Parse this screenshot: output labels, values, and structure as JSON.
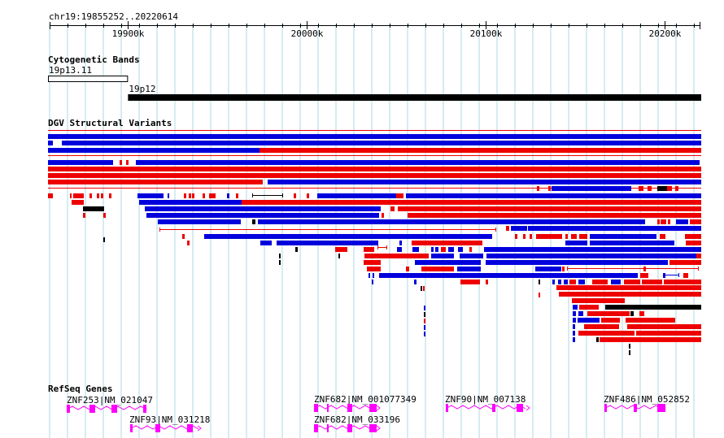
{
  "ruler": {
    "title": "chr19:19855252..20220614",
    "ticks": [
      {
        "label": "19900k",
        "pos": 19900000
      },
      {
        "label": "20000k",
        "pos": 20000000
      },
      {
        "label": "20100k",
        "pos": 20100000
      },
      {
        "label": "20200k",
        "pos": 20200000
      }
    ]
  },
  "tracks": {
    "cytoband": {
      "title": "Cytogenetic Bands",
      "bands": [
        {
          "label": "19p13.11",
          "start": 19855252,
          "end": 19900000,
          "stain": "gneg"
        },
        {
          "label": "19p12",
          "start": 19900000,
          "end": 20220614,
          "stain": "gvar"
        }
      ]
    },
    "dgv": {
      "title": "DGV Structural Variants",
      "colors": {
        "gain": "#0000dd",
        "loss": "#ee0000",
        "both": "#000000"
      }
    },
    "refseq": {
      "title": "RefSeq Genes",
      "gene_color": "#ff00ff",
      "genes": [
        {
          "label": "ZNF253|NM_021047"
        },
        {
          "label": "ZNF93|NM_031218"
        },
        {
          "label": "ZNF682|NM_001077349"
        },
        {
          "label": "ZNF682|NM_033196"
        },
        {
          "label": "ZNF90|NM_007138"
        },
        {
          "label": "ZNF486|NM_052852"
        }
      ]
    }
  }
}
